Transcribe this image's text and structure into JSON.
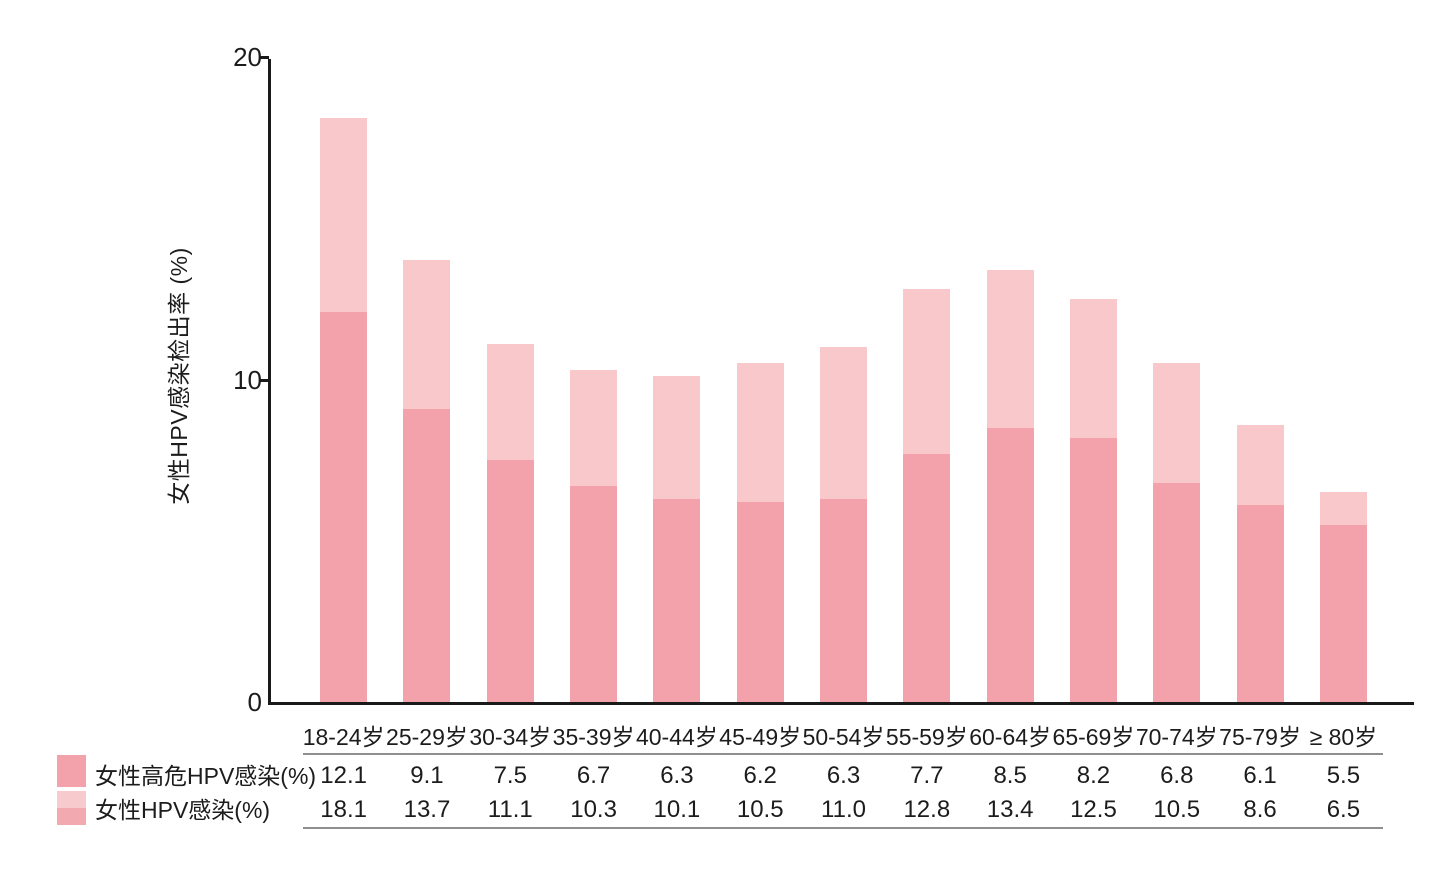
{
  "chart_data": {
    "type": "bar",
    "subtype": "overlaid-stacked",
    "title": "",
    "xlabel": "",
    "ylabel": "女性HPV感染检出率 (%)",
    "ylim": [
      0,
      20
    ],
    "yticks": [
      0,
      10,
      20
    ],
    "grid": false,
    "legend_position": "bottom-left",
    "categories": [
      "18-24岁",
      "25-29岁",
      "30-34岁",
      "35-39岁",
      "40-44岁",
      "45-49岁",
      "50-54岁",
      "55-59岁",
      "60-64岁",
      "65-69岁",
      "70-74岁",
      "75-79岁",
      "≥ 80岁"
    ],
    "series": [
      {
        "name": "女性高危HPV感染(%)",
        "color": "#f3a2ab",
        "values": [
          12.1,
          9.1,
          7.5,
          6.7,
          6.3,
          6.2,
          6.3,
          7.7,
          8.5,
          8.2,
          6.8,
          6.1,
          5.5
        ]
      },
      {
        "name": "女性HPV感染(%)",
        "color": "#f8c8cb",
        "values": [
          18.1,
          13.7,
          11.1,
          10.3,
          10.1,
          10.5,
          11.0,
          12.8,
          13.4,
          12.5,
          10.5,
          8.6,
          6.5
        ]
      }
    ]
  },
  "colors": {
    "high_risk_bar": "#f3a2ab",
    "total_bar": "#f8c8cb",
    "legend_swatch2_top": "#f7cbce",
    "legend_swatch2_bottom": "#f3a9b0",
    "axis": "#1a1a1a",
    "table_rule": "#8f8f8f",
    "text": "#1c1c1c"
  }
}
